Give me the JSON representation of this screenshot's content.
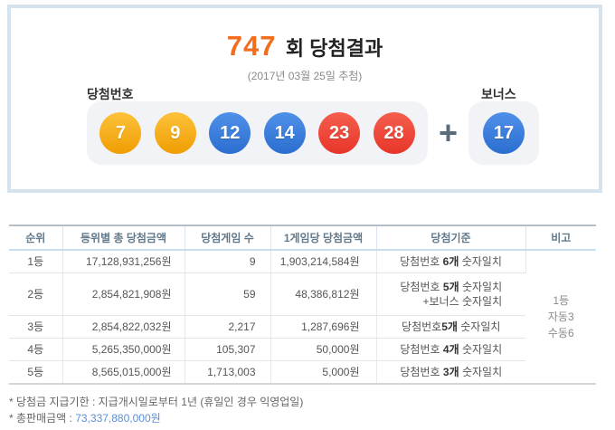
{
  "header": {
    "round": "747",
    "title_suffix": "회 당첨결과",
    "draw_date": "(2017년 03월 25일 추첨)",
    "winning_label": "당첨번호",
    "bonus_label": "보너스",
    "plus": "+"
  },
  "colors": {
    "accent_orange": "#f26d1d",
    "ball_yellow": "#f5a71d",
    "ball_blue": "#3579d8",
    "ball_red": "#ee4233",
    "box_border_blue": "#d5e3ee",
    "link_blue": "#5c8fd6"
  },
  "balls": {
    "main": [
      {
        "n": "7",
        "color": "yellow"
      },
      {
        "n": "9",
        "color": "yellow"
      },
      {
        "n": "12",
        "color": "blue"
      },
      {
        "n": "14",
        "color": "blue"
      },
      {
        "n": "23",
        "color": "red"
      },
      {
        "n": "28",
        "color": "red"
      }
    ],
    "bonus": {
      "n": "17",
      "color": "blue"
    }
  },
  "table": {
    "headers": [
      "순위",
      "등위별 총 당첨금액",
      "당첨게임 수",
      "1게임당 당첨금액",
      "당첨기준",
      "비고"
    ],
    "rows": [
      {
        "rank": "1등",
        "total": "17,128,931,256원",
        "games": "9",
        "per_game": "1,903,214,584원",
        "criteria_pre": "당첨번호 ",
        "criteria_bold": "6개",
        "criteria_post": " 숫자일치",
        "criteria_line2": ""
      },
      {
        "rank": "2등",
        "total": "2,854,821,908원",
        "games": "59",
        "per_game": "48,386,812원",
        "criteria_pre": "당첨번호 ",
        "criteria_bold": "5개",
        "criteria_post": " 숫자일치",
        "criteria_line2": "+보너스 숫자일치"
      },
      {
        "rank": "3등",
        "total": "2,854,822,032원",
        "games": "2,217",
        "per_game": "1,287,696원",
        "criteria_pre": "당첨번호",
        "criteria_bold": "5개",
        "criteria_post": " 숫자일치",
        "criteria_line2": ""
      },
      {
        "rank": "4등",
        "total": "5,265,350,000원",
        "games": "105,307",
        "per_game": "50,000원",
        "criteria_pre": "당첨번호 ",
        "criteria_bold": "4개",
        "criteria_post": " 숫자일치",
        "criteria_line2": ""
      },
      {
        "rank": "5등",
        "total": "8,565,015,000원",
        "games": "1,713,003",
        "per_game": "5,000원",
        "criteria_pre": "당첨번호 ",
        "criteria_bold": "3개",
        "criteria_post": " 숫자일치",
        "criteria_line2": ""
      }
    ],
    "note": {
      "lines": [
        "1등",
        "자동3",
        "수동6"
      ]
    }
  },
  "footnotes": {
    "line1": "* 당첨금 지급기한 : 지급개시일로부터 1년 (휴일인 경우 익영업일)",
    "line2_label": "* 총판매금액 : ",
    "line2_value": "73,337,880,000원"
  }
}
